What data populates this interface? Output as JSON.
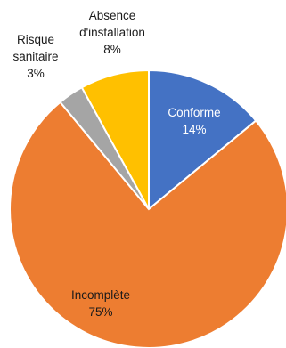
{
  "chart_data": {
    "type": "pie",
    "title": "",
    "slices": [
      {
        "name": "Conforme",
        "value": 14,
        "label_value": "14%",
        "color": "#4472C4",
        "label_color": "#ffffff"
      },
      {
        "name": "Incomplète",
        "value": 75,
        "label_value": "75%",
        "color": "#ED7D31",
        "label_color": "#1a1a1a"
      },
      {
        "name": "Risque sanitaire",
        "value": 3,
        "label_value": "3%",
        "color": "#A5A5A5",
        "label_color": "#1a1a1a"
      },
      {
        "name": "Absence d'installation",
        "value": 8,
        "label_value": "8%",
        "color": "#FFC000",
        "label_color": "#1a1a1a"
      }
    ],
    "start": "12 o'clock",
    "direction": "clockwise",
    "legend": "none"
  }
}
